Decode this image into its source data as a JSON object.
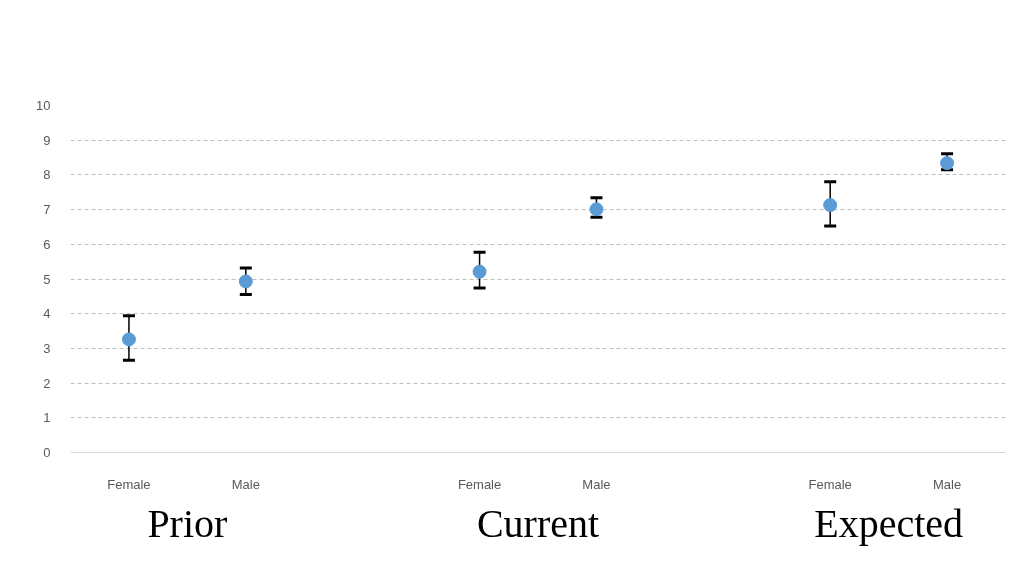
{
  "chart_data": {
    "type": "scatter",
    "categories": [
      "Female",
      "Male",
      null,
      "Female",
      "Male",
      null,
      "Female",
      "Male"
    ],
    "series": [
      {
        "color": "#5b9bd5",
        "values": [
          3.26,
          4.93,
          null,
          5.21,
          7.01,
          null,
          7.13,
          8.34
        ],
        "errors": [
          [
            2.66,
            3.94
          ],
          [
            4.55,
            5.32
          ],
          null,
          [
            4.74,
            5.77
          ],
          [
            6.78,
            7.34
          ],
          null,
          [
            6.53,
            7.8
          ],
          [
            8.15,
            8.61
          ]
        ]
      }
    ],
    "ylim": [
      0,
      10
    ],
    "yticks": [
      0,
      1,
      2,
      3,
      4,
      5,
      6,
      7,
      8,
      9,
      10
    ],
    "grid": "y",
    "marker": "circle",
    "annotations": [
      "Prior",
      "Current",
      "Expected"
    ]
  }
}
